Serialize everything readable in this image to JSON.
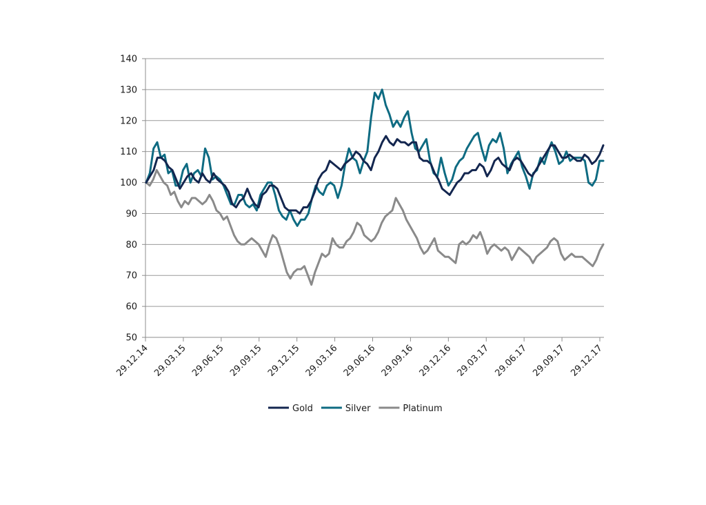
{
  "chart_data": {
    "type": "line",
    "title": "",
    "xlabel": "",
    "ylabel": "",
    "ylim": [
      50,
      140
    ],
    "yticks": [
      50,
      60,
      70,
      80,
      90,
      100,
      110,
      120,
      130,
      140
    ],
    "xticks": [
      "29.12.14",
      "29.03.15",
      "29.06.15",
      "29.09.15",
      "29.12.15",
      "29.03.16",
      "29.06.16",
      "29.09.16",
      "29.12.16",
      "29.03.17",
      "29.06.17",
      "29.09.17",
      "29.12.17"
    ],
    "grid": "horizontal",
    "legend_position": "bottom",
    "series": [
      {
        "name": "Gold",
        "color": "#13264f",
        "values": [
          100,
          102,
          104,
          108,
          108,
          107,
          105,
          104,
          101,
          98,
          100,
          102,
          103,
          101,
          100,
          103,
          101,
          100,
          103,
          101,
          100,
          99,
          97,
          93,
          92,
          94,
          95,
          98,
          95,
          93,
          92,
          96,
          97,
          99,
          99,
          98,
          95,
          92,
          91,
          91,
          91,
          90,
          92,
          92,
          94,
          97,
          101,
          103,
          104,
          107,
          106,
          105,
          104,
          106,
          107,
          108,
          110,
          109,
          107,
          106,
          104,
          108,
          110,
          113,
          115,
          113,
          112,
          114,
          113,
          113,
          112,
          113,
          113,
          108,
          107,
          107,
          106,
          103,
          101,
          98,
          97,
          96,
          98,
          100,
          101,
          103,
          103,
          104,
          104,
          106,
          105,
          102,
          104,
          107,
          108,
          106,
          105,
          104,
          107,
          108,
          107,
          105,
          103,
          102,
          104,
          106,
          108,
          110,
          112,
          112,
          110,
          108,
          108,
          109,
          108,
          107,
          107,
          109,
          108,
          106,
          107,
          109,
          112
        ]
      },
      {
        "name": "Silver",
        "color": "#0e6b82",
        "values": [
          100,
          103,
          111,
          113,
          108,
          109,
          103,
          104,
          99,
          99,
          104,
          106,
          100,
          103,
          104,
          102,
          111,
          108,
          101,
          102,
          101,
          99,
          96,
          93,
          93,
          96,
          96,
          93,
          92,
          93,
          91,
          96,
          98,
          100,
          100,
          96,
          91,
          89,
          88,
          91,
          88,
          86,
          88,
          88,
          90,
          95,
          99,
          97,
          96,
          99,
          100,
          99,
          95,
          99,
          106,
          111,
          108,
          107,
          103,
          107,
          110,
          121,
          129,
          127,
          130,
          125,
          122,
          118,
          120,
          118,
          121,
          123,
          116,
          111,
          110,
          112,
          114,
          107,
          103,
          102,
          108,
          103,
          99,
          101,
          105,
          107,
          108,
          111,
          113,
          115,
          116,
          111,
          107,
          112,
          114,
          113,
          116,
          111,
          103,
          106,
          108,
          110,
          105,
          102,
          98,
          103,
          104,
          108,
          106,
          110,
          113,
          110,
          106,
          107,
          110,
          107,
          108,
          108,
          108,
          107,
          100,
          99,
          101,
          107,
          107
        ]
      },
      {
        "name": "Platinum",
        "color": "#8a8a8a",
        "values": [
          100,
          99,
          101,
          104,
          102,
          100,
          99,
          96,
          97,
          94,
          92,
          94,
          93,
          95,
          95,
          94,
          93,
          94,
          96,
          94,
          91,
          90,
          88,
          89,
          86,
          83,
          81,
          80,
          80,
          81,
          82,
          81,
          80,
          78,
          76,
          80,
          83,
          82,
          79,
          75,
          71,
          69,
          71,
          72,
          72,
          73,
          70,
          67,
          71,
          74,
          77,
          76,
          77,
          82,
          80,
          79,
          79,
          81,
          82,
          84,
          87,
          86,
          83,
          82,
          81,
          82,
          84,
          87,
          89,
          90,
          91,
          95,
          93,
          91,
          88,
          86,
          84,
          82,
          79,
          77,
          78,
          80,
          82,
          78,
          77,
          76,
          76,
          75,
          74,
          80,
          81,
          80,
          81,
          83,
          82,
          84,
          81,
          77,
          79,
          80,
          79,
          78,
          79,
          78,
          75,
          77,
          79,
          78,
          77,
          76,
          74,
          76,
          77,
          78,
          79,
          81,
          82,
          81,
          77,
          75,
          76,
          77,
          76,
          76,
          76,
          75,
          74,
          73,
          75,
          78,
          80
        ]
      }
    ]
  }
}
